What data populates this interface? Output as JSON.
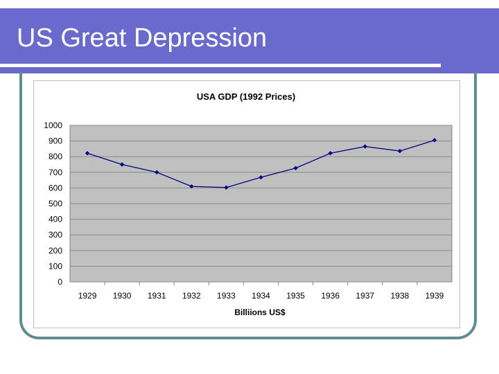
{
  "slide": {
    "title": "US Great Depression"
  },
  "colors": {
    "title_bar": "#6a6acd",
    "frame": "#5f8c8c",
    "plot_bg": "#c0c0c0",
    "series": "#000080"
  },
  "chart_data": {
    "type": "line",
    "title": "USA GDP (1992 Prices)",
    "xlabel": "Billiions US$",
    "ylabel": "",
    "categories": [
      "1929",
      "1930",
      "1931",
      "1932",
      "1933",
      "1934",
      "1935",
      "1936",
      "1937",
      "1938",
      "1939"
    ],
    "series": [
      {
        "name": "GDP",
        "values": [
          822,
          750,
          700,
          610,
          603,
          668,
          727,
          822,
          865,
          836,
          905
        ]
      }
    ],
    "ylim": [
      0,
      1000
    ],
    "yticks": [
      0,
      100,
      200,
      300,
      400,
      500,
      600,
      700,
      800,
      900,
      1000
    ],
    "grid": true,
    "legend": "none"
  }
}
